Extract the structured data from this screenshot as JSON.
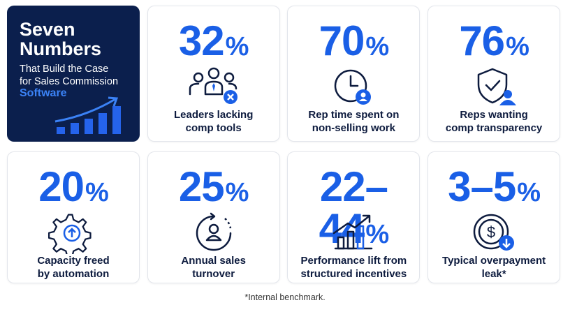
{
  "header": {
    "title": [
      "Seven",
      "Numbers"
    ],
    "subtitle": [
      "That Build the Case",
      "for Sales Commission"
    ],
    "highlight": "Software"
  },
  "cards": [
    {
      "stat": "32",
      "unit": "%",
      "label": [
        "Leaders lacking",
        "comp tools"
      ]
    },
    {
      "stat": "70",
      "unit": "%",
      "label": [
        "Rep time spent on",
        "non-selling work"
      ]
    },
    {
      "stat": "76",
      "unit": "%",
      "label": [
        "Reps wanting",
        "comp transparency"
      ]
    },
    {
      "stat": "20",
      "unit": "%",
      "label": [
        "Capacity freed",
        "by automation"
      ]
    },
    {
      "stat": "25",
      "unit": "%",
      "label": [
        "Annual sales",
        "turnover"
      ]
    },
    {
      "stat": "22–44",
      "unit": "%",
      "label": [
        "Performance lift from",
        "structured incentives"
      ]
    },
    {
      "stat": "3–5",
      "unit": "%",
      "label": [
        "Typical overpayment",
        "leak*"
      ]
    }
  ],
  "footnote": "*Internal benchmark."
}
